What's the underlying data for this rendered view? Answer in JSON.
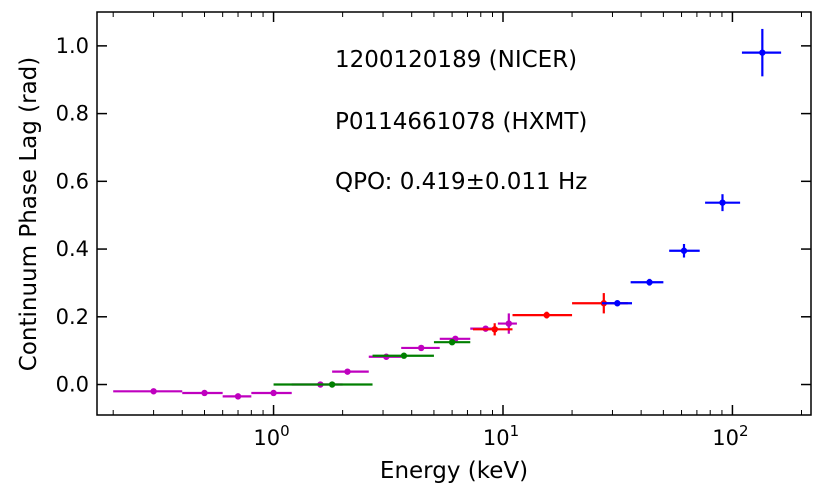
{
  "chart_data": {
    "type": "scatter",
    "xlabel": "Energy (keV)",
    "ylabel": "Continuum Phase Lag (rad)",
    "xscale": "log",
    "xlim": [
      0.17,
      220
    ],
    "ylim": [
      -0.09,
      1.1
    ],
    "x_ticks": [
      {
        "value": 1,
        "base": "10",
        "exp": "0"
      },
      {
        "value": 10,
        "base": "10",
        "exp": "1"
      },
      {
        "value": 100,
        "base": "10",
        "exp": "2"
      }
    ],
    "y_ticks": [
      0.0,
      0.2,
      0.4,
      0.6,
      0.8,
      1.0
    ],
    "y_tick_labels": [
      "0.0",
      "0.2",
      "0.4",
      "0.6",
      "0.8",
      "1.0"
    ],
    "annotations": [
      "1200120189 (NICER)",
      "P0114661078 (HXMT)",
      "QPO: 0.419±0.011 Hz"
    ],
    "series": [
      {
        "color": "#bf00bf",
        "points": [
          {
            "x": 0.3,
            "y": -0.02,
            "xlo": 0.2,
            "xhi": 0.4,
            "yerr": 0.004
          },
          {
            "x": 0.5,
            "y": -0.025,
            "xlo": 0.4,
            "xhi": 0.6,
            "yerr": 0.004
          },
          {
            "x": 0.7,
            "y": -0.035,
            "xlo": 0.6,
            "xhi": 0.8,
            "yerr": 0.004
          },
          {
            "x": 1.0,
            "y": -0.025,
            "xlo": 0.8,
            "xhi": 1.2,
            "yerr": 0.004
          },
          {
            "x": 1.6,
            "y": 0.0,
            "xlo": 1.2,
            "xhi": 2.0,
            "yerr": 0.004
          },
          {
            "x": 2.1,
            "y": 0.038,
            "xlo": 1.8,
            "xhi": 2.6,
            "yerr": 0.004
          },
          {
            "x": 3.1,
            "y": 0.082,
            "xlo": 2.6,
            "xhi": 3.6,
            "yerr": 0.004
          },
          {
            "x": 4.4,
            "y": 0.108,
            "xlo": 3.6,
            "xhi": 5.3,
            "yerr": 0.004
          },
          {
            "x": 6.2,
            "y": 0.135,
            "xlo": 5.3,
            "xhi": 7.2,
            "yerr": 0.005
          },
          {
            "x": 8.4,
            "y": 0.165,
            "xlo": 7.2,
            "xhi": 9.5,
            "yerr": 0.008
          },
          {
            "x": 10.6,
            "y": 0.18,
            "xlo": 9.5,
            "xhi": 11.5,
            "yerr": 0.03
          }
        ]
      },
      {
        "color": "#007f00",
        "points": [
          {
            "x": 1.8,
            "y": 0.0,
            "xlo": 1.0,
            "xhi": 2.7,
            "yerr": 0.004
          },
          {
            "x": 3.7,
            "y": 0.085,
            "xlo": 2.7,
            "xhi": 5.0,
            "yerr": 0.004
          },
          {
            "x": 6.0,
            "y": 0.125,
            "xlo": 5.0,
            "xhi": 7.2,
            "yerr": 0.006
          }
        ]
      },
      {
        "color": "#ff0000",
        "points": [
          {
            "x": 9.2,
            "y": 0.163,
            "xlo": 7.4,
            "xhi": 11.0,
            "yerr": 0.018
          },
          {
            "x": 15.5,
            "y": 0.205,
            "xlo": 11.0,
            "xhi": 20.0,
            "yerr": 0.01
          },
          {
            "x": 27.5,
            "y": 0.24,
            "xlo": 20.0,
            "xhi": 35.0,
            "yerr": 0.03
          }
        ]
      },
      {
        "color": "#0000ff",
        "points": [
          {
            "x": 31.5,
            "y": 0.24,
            "xlo": 27.0,
            "xhi": 36.5,
            "yerr": 0.008
          },
          {
            "x": 43.5,
            "y": 0.302,
            "xlo": 36.0,
            "xhi": 50.0,
            "yerr": 0.01
          },
          {
            "x": 61.5,
            "y": 0.395,
            "xlo": 53.0,
            "xhi": 72.0,
            "yerr": 0.02
          },
          {
            "x": 90.5,
            "y": 0.537,
            "xlo": 76.0,
            "xhi": 108.0,
            "yerr": 0.025
          },
          {
            "x": 135.0,
            "y": 0.98,
            "xlo": 110.0,
            "xhi": 163.0,
            "yerr": 0.07
          }
        ]
      }
    ]
  }
}
